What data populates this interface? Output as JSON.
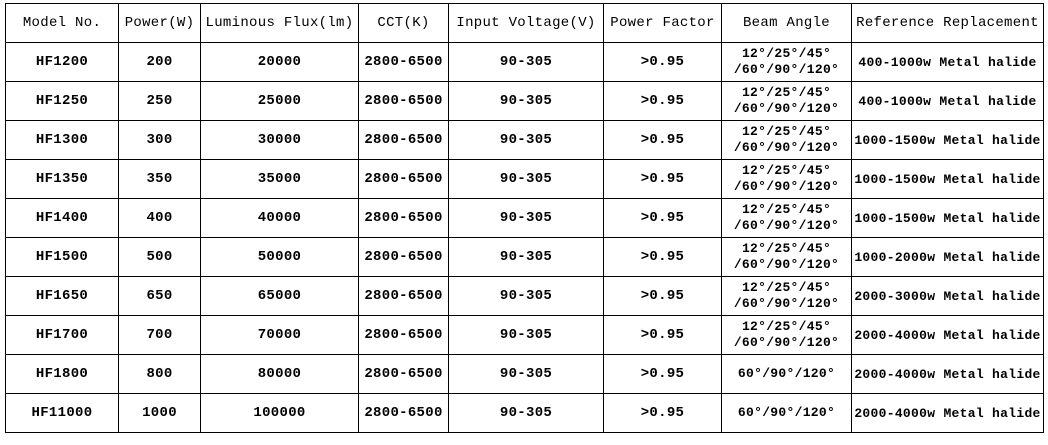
{
  "headers": [
    "Model No.",
    "Power(W)",
    "Luminous Flux(lm)",
    "CCT(K)",
    "Input Voltage(V)",
    "Power Factor",
    "Beam Angle",
    "Reference Replacement"
  ],
  "rows": [
    {
      "model": "HF1200",
      "power": "200",
      "flux": "20000",
      "cct": "2800-6500",
      "voltage": "90-305",
      "pf": ">0.95",
      "beam": [
        "12°/25°/45°",
        "/60°/90°/120°"
      ],
      "ref": "400-1000w Metal halide"
    },
    {
      "model": "HF1250",
      "power": "250",
      "flux": "25000",
      "cct": "2800-6500",
      "voltage": "90-305",
      "pf": ">0.95",
      "beam": [
        "12°/25°/45°",
        "/60°/90°/120°"
      ],
      "ref": "400-1000w Metal halide"
    },
    {
      "model": "HF1300",
      "power": "300",
      "flux": "30000",
      "cct": "2800-6500",
      "voltage": "90-305",
      "pf": ">0.95",
      "beam": [
        "12°/25°/45°",
        "/60°/90°/120°"
      ],
      "ref": "1000-1500w Metal halide"
    },
    {
      "model": "HF1350",
      "power": "350",
      "flux": "35000",
      "cct": "2800-6500",
      "voltage": "90-305",
      "pf": ">0.95",
      "beam": [
        "12°/25°/45°",
        "/60°/90°/120°"
      ],
      "ref": "1000-1500w Metal halide"
    },
    {
      "model": "HF1400",
      "power": "400",
      "flux": "40000",
      "cct": "2800-6500",
      "voltage": "90-305",
      "pf": ">0.95",
      "beam": [
        "12°/25°/45°",
        "/60°/90°/120°"
      ],
      "ref": "1000-1500w Metal halide"
    },
    {
      "model": "HF1500",
      "power": "500",
      "flux": "50000",
      "cct": "2800-6500",
      "voltage": "90-305",
      "pf": ">0.95",
      "beam": [
        "12°/25°/45°",
        "/60°/90°/120°"
      ],
      "ref": "1000-2000w Metal halide"
    },
    {
      "model": "HF1650",
      "power": "650",
      "flux": "65000",
      "cct": "2800-6500",
      "voltage": "90-305",
      "pf": ">0.95",
      "beam": [
        "12°/25°/45°",
        "/60°/90°/120°"
      ],
      "ref": "2000-3000w Metal halide"
    },
    {
      "model": "HF1700",
      "power": "700",
      "flux": "70000",
      "cct": "2800-6500",
      "voltage": "90-305",
      "pf": ">0.95",
      "beam": [
        "12°/25°/45°",
        "/60°/90°/120°"
      ],
      "ref": "2000-4000w Metal halide"
    },
    {
      "model": "HF1800",
      "power": "800",
      "flux": "80000",
      "cct": "2800-6500",
      "voltage": "90-305",
      "pf": ">0.95",
      "beam": [
        "60°/90°/120°"
      ],
      "ref": "2000-4000w Metal halide"
    },
    {
      "model": "HF11000",
      "power": "1000",
      "flux": "100000",
      "cct": "2800-6500",
      "voltage": "90-305",
      "pf": ">0.95",
      "beam": [
        "60°/90°/120°"
      ],
      "ref": "2000-4000w Metal halide"
    }
  ]
}
